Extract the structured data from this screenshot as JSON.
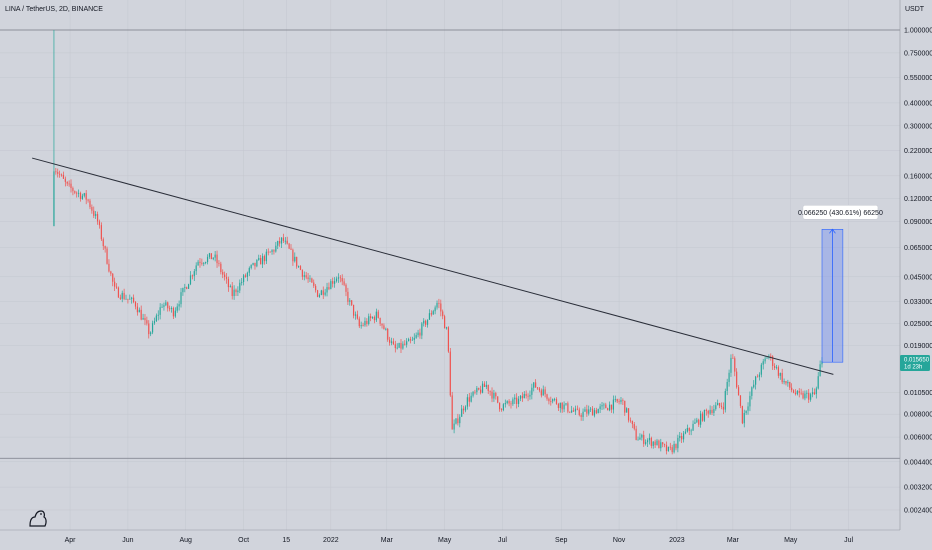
{
  "header": {
    "symbol_title": "LINA / TetherUS, 2D, BINANCE",
    "currency": "USDT"
  },
  "chart_data": {
    "type": "candlestick",
    "y_scale": "log",
    "ylim": [
      0.0015,
      1.0
    ],
    "y_ticks": [
      {
        "value": 1.0,
        "label": "1.000000"
      },
      {
        "value": 0.75,
        "label": "0.750000"
      },
      {
        "value": 0.55,
        "label": "0.550000"
      },
      {
        "value": 0.4,
        "label": "0.400000"
      },
      {
        "value": 0.3,
        "label": "0.300000"
      },
      {
        "value": 0.22,
        "label": "0.220000"
      },
      {
        "value": 0.16,
        "label": "0.160000"
      },
      {
        "value": 0.12,
        "label": "0.120000"
      },
      {
        "value": 0.09,
        "label": "0.090000"
      },
      {
        "value": 0.065,
        "label": "0.065000"
      },
      {
        "value": 0.045,
        "label": "0.045000"
      },
      {
        "value": 0.033,
        "label": "0.033000"
      },
      {
        "value": 0.025,
        "label": "0.025000"
      },
      {
        "value": 0.019,
        "label": "0.019000"
      },
      {
        "value": 0.0105,
        "label": "0.010500"
      },
      {
        "value": 0.008,
        "label": "0.008000"
      },
      {
        "value": 0.006,
        "label": "0.006000"
      },
      {
        "value": 0.0044,
        "label": "0.004400"
      },
      {
        "value": 0.0032,
        "label": "0.003200"
      },
      {
        "value": 0.0024,
        "label": "0.002400"
      }
    ],
    "x_ticks": [
      {
        "date": "2021-04-01",
        "label": "Apr"
      },
      {
        "date": "2021-06-01",
        "label": "Jun"
      },
      {
        "date": "2021-08-01",
        "label": "Aug"
      },
      {
        "date": "2021-10-01",
        "label": "Oct"
      },
      {
        "date": "2021-11-15",
        "label": "15"
      },
      {
        "date": "2022-01-01",
        "label": "2022"
      },
      {
        "date": "2022-03-01",
        "label": "Mar"
      },
      {
        "date": "2022-05-01",
        "label": "May"
      },
      {
        "date": "2022-07-01",
        "label": "Jul"
      },
      {
        "date": "2022-09-01",
        "label": "Sep"
      },
      {
        "date": "2022-11-01",
        "label": "Nov"
      },
      {
        "date": "2023-01-01",
        "label": "2023"
      },
      {
        "date": "2023-03-01",
        "label": "Mar"
      },
      {
        "date": "2023-05-01",
        "label": "May"
      },
      {
        "date": "2023-07-01",
        "label": "Jul"
      }
    ],
    "xlim": [
      "2021-02-10",
      "2023-08-15"
    ],
    "price_path": [
      {
        "date": "2021-03-14",
        "value": 0.085
      },
      {
        "date": "2021-03-16",
        "value": 0.18
      },
      {
        "date": "2021-03-30",
        "value": 0.14
      },
      {
        "date": "2021-04-20",
        "value": 0.12
      },
      {
        "date": "2021-05-01",
        "value": 0.09
      },
      {
        "date": "2021-05-19",
        "value": 0.038
      },
      {
        "date": "2021-06-10",
        "value": 0.032
      },
      {
        "date": "2021-06-25",
        "value": 0.022
      },
      {
        "date": "2021-07-08",
        "value": 0.032
      },
      {
        "date": "2021-07-20",
        "value": 0.029
      },
      {
        "date": "2021-08-15",
        "value": 0.055
      },
      {
        "date": "2021-09-01",
        "value": 0.058
      },
      {
        "date": "2021-09-20",
        "value": 0.036
      },
      {
        "date": "2021-10-10",
        "value": 0.05
      },
      {
        "date": "2021-11-01",
        "value": 0.062
      },
      {
        "date": "2021-11-12",
        "value": 0.072
      },
      {
        "date": "2021-11-30",
        "value": 0.05
      },
      {
        "date": "2021-12-20",
        "value": 0.036
      },
      {
        "date": "2022-01-10",
        "value": 0.046
      },
      {
        "date": "2022-02-01",
        "value": 0.024
      },
      {
        "date": "2022-02-20",
        "value": 0.028
      },
      {
        "date": "2022-03-10",
        "value": 0.018
      },
      {
        "date": "2022-03-30",
        "value": 0.02
      },
      {
        "date": "2022-04-15",
        "value": 0.027
      },
      {
        "date": "2022-04-25",
        "value": 0.033
      },
      {
        "date": "2022-05-05",
        "value": 0.022
      },
      {
        "date": "2022-05-10",
        "value": 0.0065
      },
      {
        "date": "2022-05-25",
        "value": 0.0095
      },
      {
        "date": "2022-06-15",
        "value": 0.0115
      },
      {
        "date": "2022-06-30",
        "value": 0.0088
      },
      {
        "date": "2022-07-20",
        "value": 0.0095
      },
      {
        "date": "2022-08-05",
        "value": 0.0115
      },
      {
        "date": "2022-08-25",
        "value": 0.0095
      },
      {
        "date": "2022-09-20",
        "value": 0.008
      },
      {
        "date": "2022-10-15",
        "value": 0.0086
      },
      {
        "date": "2022-11-05",
        "value": 0.0095
      },
      {
        "date": "2022-11-20",
        "value": 0.006
      },
      {
        "date": "2022-12-10",
        "value": 0.0056
      },
      {
        "date": "2022-12-25",
        "value": 0.005
      },
      {
        "date": "2023-01-10",
        "value": 0.0062
      },
      {
        "date": "2023-02-05",
        "value": 0.0085
      },
      {
        "date": "2023-02-20",
        "value": 0.009
      },
      {
        "date": "2023-03-01",
        "value": 0.017
      },
      {
        "date": "2023-03-12",
        "value": 0.0075
      },
      {
        "date": "2023-03-25",
        "value": 0.012
      },
      {
        "date": "2023-04-08",
        "value": 0.017
      },
      {
        "date": "2023-04-25",
        "value": 0.012
      },
      {
        "date": "2023-05-10",
        "value": 0.01
      },
      {
        "date": "2023-05-28",
        "value": 0.0102
      },
      {
        "date": "2023-06-03",
        "value": 0.0156
      }
    ],
    "trendline": {
      "start": {
        "date": "2021-02-20",
        "value": 0.2
      },
      "end": {
        "date": "2023-06-15",
        "value": 0.0132
      }
    },
    "horizontal_lines": [
      {
        "value": 1.0
      },
      {
        "value": 0.0046
      }
    ],
    "measure_box": {
      "start_date": "2023-06-03",
      "end_date": "2023-06-25",
      "low": 0.01538,
      "high": 0.0817,
      "label": "0.066250 (430.61%) 66250"
    },
    "price_tag": {
      "value": 0.0156,
      "line1": "0.015650",
      "line2": "1d 23h"
    }
  },
  "colors": {
    "up": "#26a69a",
    "down": "#ef5350",
    "background": "#d1d4dc",
    "text": "#131722",
    "trendline": "#2a2e39",
    "measure_fill": "#7593ef",
    "measure_line": "#2962ff",
    "price_tag": "#26a69a"
  },
  "icons": {
    "logo": "tradingview-logo-icon"
  }
}
